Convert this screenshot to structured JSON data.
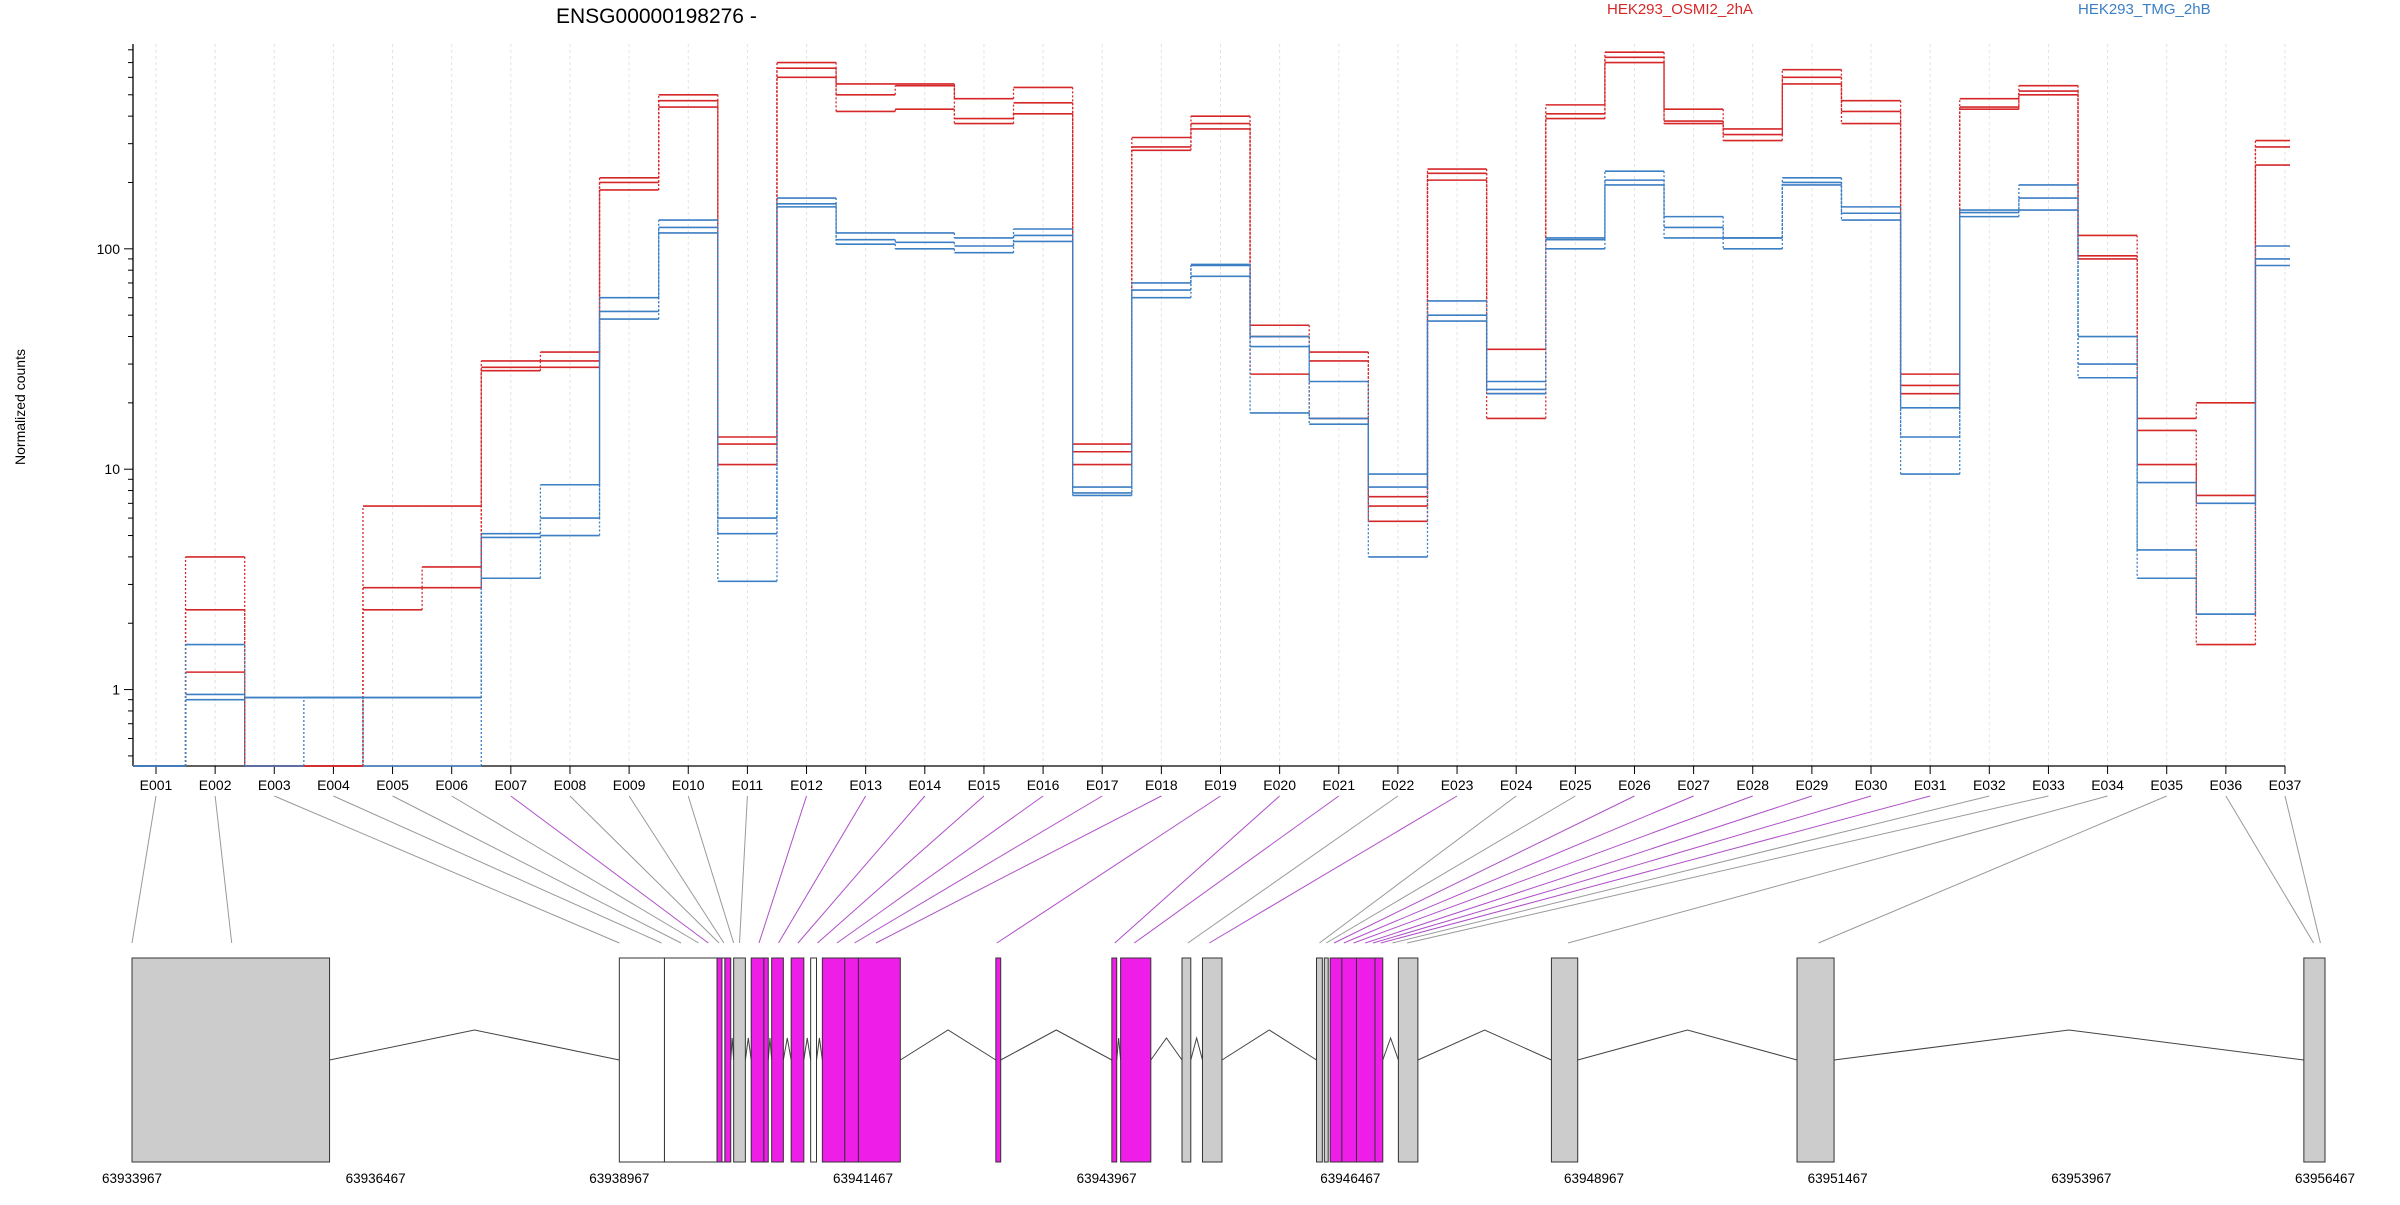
{
  "chart_data": {
    "type": "line",
    "title": "ENSG00000198276 -",
    "ylabel": "Normalized counts",
    "yscale": "log",
    "ylim": [
      0.45,
      850
    ],
    "yticks": [
      1,
      10,
      100
    ],
    "ytick_labels": [
      "1",
      "10",
      "100"
    ],
    "grid": "vertical dashed lines at each exon bin",
    "legend_placement": "top",
    "colors": {
      "HEK293_OSMI2_2hA": "#d62728",
      "HEK293_TMG_2hB": "#3b7fc4",
      "exon_plain": "#cccccc",
      "exon_significant": "#ee1ee8",
      "connector_plain": "#999999",
      "connector_significant": "#b04fc8"
    },
    "x": [
      "E001",
      "E002",
      "E003",
      "E004",
      "E005",
      "E006",
      "E007",
      "E008",
      "E009",
      "E010",
      "E011",
      "E012",
      "E013",
      "E014",
      "E015",
      "E016",
      "E017",
      "E018",
      "E019",
      "E020",
      "E021",
      "E022",
      "E023",
      "E024",
      "E025",
      "E026",
      "E027",
      "E028",
      "E029",
      "E030",
      "E031",
      "E032",
      "E033",
      "E034",
      "E035",
      "E036",
      "E037"
    ],
    "series": [
      {
        "name": "HEK293_OSMI2_2hA",
        "replicate": 1,
        "values": [
          0.45,
          4.0,
          0.45,
          0.45,
          6.8,
          6.8,
          31,
          34,
          210,
          500,
          14,
          700,
          560,
          560,
          480,
          540,
          13,
          320,
          400,
          45,
          34,
          7.5,
          230,
          35,
          450,
          780,
          430,
          350,
          650,
          470,
          27,
          480,
          550,
          115,
          17,
          20,
          310
        ]
      },
      {
        "name": "HEK293_OSMI2_2hA",
        "replicate": 2,
        "values": [
          0.45,
          2.3,
          0.45,
          0.45,
          2.9,
          3.6,
          29,
          31,
          200,
          470,
          13,
          660,
          500,
          550,
          390,
          460,
          12,
          290,
          370,
          40,
          31,
          6.8,
          220,
          22,
          410,
          740,
          380,
          330,
          600,
          420,
          24,
          440,
          520,
          93,
          15,
          7.6,
          290
        ]
      },
      {
        "name": "HEK293_OSMI2_2hA",
        "replicate": 3,
        "values": [
          0.45,
          1.2,
          0.45,
          0.45,
          2.3,
          2.9,
          28,
          29,
          185,
          440,
          10.5,
          600,
          420,
          430,
          370,
          410,
          10.5,
          280,
          350,
          27,
          17,
          5.8,
          205,
          17,
          390,
          700,
          370,
          310,
          560,
          370,
          22,
          430,
          500,
          90,
          10.5,
          1.6,
          240
        ]
      },
      {
        "name": "HEK293_TMG_2hB",
        "replicate": 1,
        "values": [
          0.45,
          1.6,
          0.92,
          0.92,
          0.92,
          0.92,
          5.1,
          8.5,
          60,
          135,
          6.0,
          170,
          118,
          118,
          112,
          123,
          8.3,
          70,
          85,
          40,
          25,
          9.5,
          58,
          25,
          112,
          225,
          140,
          112,
          210,
          155,
          19,
          150,
          195,
          40,
          8.7,
          7.0,
          103
        ]
      },
      {
        "name": "HEK293_TMG_2hB",
        "replicate": 2,
        "values": [
          0.45,
          0.95,
          0.92,
          0.92,
          0.92,
          0.92,
          4.9,
          6.0,
          52,
          125,
          5.1,
          160,
          110,
          107,
          103,
          115,
          7.8,
          65,
          84,
          36,
          17,
          8.3,
          50,
          23,
          110,
          205,
          125,
          112,
          200,
          145,
          14,
          146,
          170,
          30,
          4.3,
          2.2,
          90
        ]
      },
      {
        "name": "HEK293_TMG_2hB",
        "replicate": 3,
        "values": [
          0.45,
          0.9,
          0.45,
          0.92,
          0.45,
          0.45,
          3.2,
          5.0,
          48,
          118,
          3.1,
          155,
          105,
          100,
          96,
          108,
          7.6,
          60,
          75,
          18,
          16,
          4.0,
          47,
          22,
          100,
          195,
          112,
          100,
          195,
          135,
          9.5,
          140,
          150,
          26,
          3.2,
          2.2,
          84
        ]
      }
    ],
    "gene_model": {
      "coordinate_labels": [
        "63933967",
        "63936467",
        "63938967",
        "63941467",
        "63943967",
        "63946467",
        "63948967",
        "63951467",
        "63953967",
        "63956467"
      ],
      "coord_start": 63933967,
      "coord_end": 63956467,
      "exon_blocks": [
        {
          "start": 63933967,
          "end": 63935994,
          "kind": "plain"
        },
        {
          "start": 63938967,
          "end": 63939430,
          "kind": "outline"
        },
        {
          "start": 63939430,
          "end": 63939970,
          "kind": "outline"
        },
        {
          "start": 63939970,
          "end": 63940020,
          "kind": "significant"
        },
        {
          "start": 63940020,
          "end": 63940050,
          "kind": "outline"
        },
        {
          "start": 63940050,
          "end": 63940110,
          "kind": "significant"
        },
        {
          "start": 63940140,
          "end": 63940260,
          "kind": "plain"
        },
        {
          "start": 63940320,
          "end": 63940450,
          "kind": "significant"
        },
        {
          "start": 63940450,
          "end": 63940495,
          "kind": "significant"
        },
        {
          "start": 63940530,
          "end": 63940650,
          "kind": "significant"
        },
        {
          "start": 63940730,
          "end": 63940860,
          "kind": "significant"
        },
        {
          "start": 63940930,
          "end": 63940990,
          "kind": "outline"
        },
        {
          "start": 63941050,
          "end": 63941280,
          "kind": "significant"
        },
        {
          "start": 63941280,
          "end": 63941420,
          "kind": "significant"
        },
        {
          "start": 63941420,
          "end": 63941850,
          "kind": "significant"
        },
        {
          "start": 63942830,
          "end": 63942880,
          "kind": "significant"
        },
        {
          "start": 63944020,
          "end": 63944070,
          "kind": "significant"
        },
        {
          "start": 63944110,
          "end": 63944420,
          "kind": "significant"
        },
        {
          "start": 63944740,
          "end": 63944830,
          "kind": "plain"
        },
        {
          "start": 63944950,
          "end": 63945150,
          "kind": "plain"
        },
        {
          "start": 63946120,
          "end": 63946180,
          "kind": "plain"
        },
        {
          "start": 63946200,
          "end": 63946240,
          "kind": "plain"
        },
        {
          "start": 63946260,
          "end": 63946380,
          "kind": "significant"
        },
        {
          "start": 63946380,
          "end": 63946530,
          "kind": "significant"
        },
        {
          "start": 63946530,
          "end": 63946720,
          "kind": "significant"
        },
        {
          "start": 63946720,
          "end": 63946800,
          "kind": "significant"
        },
        {
          "start": 63946960,
          "end": 63947160,
          "kind": "plain"
        },
        {
          "start": 63948530,
          "end": 63948800,
          "kind": "plain"
        },
        {
          "start": 63951050,
          "end": 63951430,
          "kind": "plain"
        },
        {
          "start": 63956250,
          "end": 63956467,
          "kind": "plain"
        }
      ],
      "bin_targets": [
        63933967,
        63934990,
        63938967,
        63939400,
        63939600,
        63939780,
        63939880,
        63939990,
        63940040,
        63940140,
        63940200,
        63940400,
        63940600,
        63940800,
        63941000,
        63941200,
        63941380,
        63941600,
        63942840,
        63944050,
        63944250,
        63944800,
        63945020,
        63946150,
        63946220,
        63946300,
        63946400,
        63946500,
        63946620,
        63946700,
        63946780,
        63946900,
        63947050,
        63948700,
        63951270,
        63956350,
        63956420
      ],
      "bin_significant": [
        false,
        false,
        false,
        false,
        false,
        false,
        true,
        false,
        false,
        false,
        false,
        true,
        true,
        true,
        true,
        true,
        true,
        true,
        true,
        true,
        true,
        false,
        true,
        false,
        false,
        true,
        true,
        true,
        true,
        true,
        true,
        false,
        false,
        false,
        false,
        false,
        false
      ]
    }
  }
}
